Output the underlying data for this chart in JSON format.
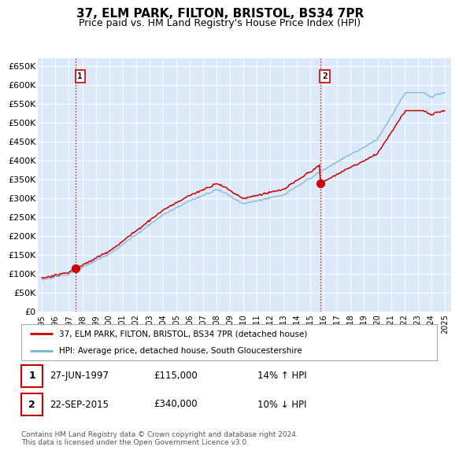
{
  "title": "37, ELM PARK, FILTON, BRISTOL, BS34 7PR",
  "subtitle": "Price paid vs. HM Land Registry's House Price Index (HPI)",
  "ylim": [
    0,
    670000
  ],
  "yticks": [
    0,
    50000,
    100000,
    150000,
    200000,
    250000,
    300000,
    350000,
    400000,
    450000,
    500000,
    550000,
    600000,
    650000
  ],
  "ytick_labels": [
    "£0",
    "£50K",
    "£100K",
    "£150K",
    "£200K",
    "£250K",
    "£300K",
    "£350K",
    "£400K",
    "£450K",
    "£500K",
    "£550K",
    "£600K",
    "£650K"
  ],
  "xlim_start": 1994.7,
  "xlim_end": 2025.5,
  "background_color": "#dce9f8",
  "grid_color": "#ffffff",
  "line1_color": "#cc0000",
  "line2_color": "#7bafd4",
  "marker_color": "#cc0000",
  "sale1_x": 1997.486,
  "sale1_y": 115000,
  "sale2_x": 2015.726,
  "sale2_y": 340000,
  "annotation1_label": "1",
  "annotation2_label": "2",
  "legend_line1": "37, ELM PARK, FILTON, BRISTOL, BS34 7PR (detached house)",
  "legend_line2": "HPI: Average price, detached house, South Gloucestershire",
  "table_row1": [
    "1",
    "27-JUN-1997",
    "£115,000",
    "14% ↑ HPI"
  ],
  "table_row2": [
    "2",
    "22-SEP-2015",
    "£340,000",
    "10% ↓ HPI"
  ],
  "footer": "Contains HM Land Registry data © Crown copyright and database right 2024.\nThis data is licensed under the Open Government Licence v3.0.",
  "title_fontsize": 11,
  "subtitle_fontsize": 9,
  "tick_fontsize": 8
}
